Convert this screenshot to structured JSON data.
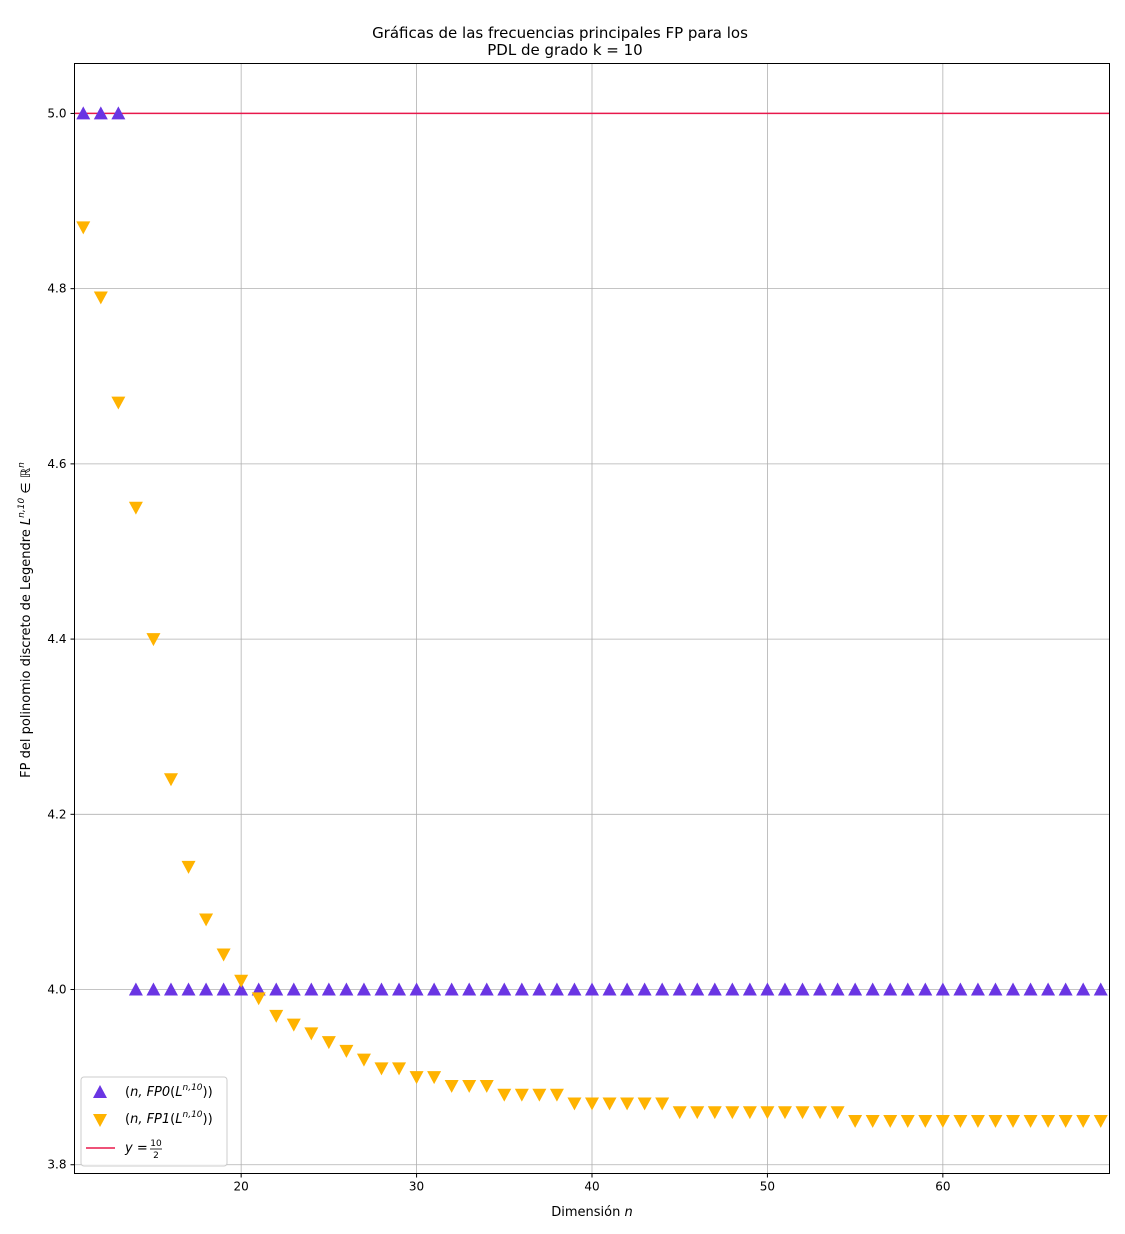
{
  "chart_data": {
    "type": "scatter",
    "title_line1": "Gráficas de las frecuencias principales FP para los",
    "title_line2": "PDL de grado k = 10",
    "xlabel": "Dimensión n",
    "ylabel": "FP del polinomio discreto de Legendre L^{n,10} ∈ ℝ^n",
    "xlim": [
      10.5,
      69.5
    ],
    "ylim": [
      3.79,
      5.057
    ],
    "xticks": [
      20,
      30,
      40,
      50,
      60
    ],
    "yticks": [
      3.8,
      4.0,
      4.2,
      4.4,
      4.6,
      4.8,
      5.0
    ],
    "grid": true,
    "legend_position": "lower-left",
    "series": [
      {
        "name": "(n, FP0(L^{n,10}))",
        "marker": "triangle-up",
        "color": "#6a35e3",
        "x": [
          11,
          12,
          13,
          14,
          15,
          16,
          17,
          18,
          19,
          20,
          21,
          22,
          23,
          24,
          25,
          26,
          27,
          28,
          29,
          30,
          31,
          32,
          33,
          34,
          35,
          36,
          37,
          38,
          39,
          40,
          41,
          42,
          43,
          44,
          45,
          46,
          47,
          48,
          49,
          50,
          51,
          52,
          53,
          54,
          55,
          56,
          57,
          58,
          59,
          60,
          61,
          62,
          63,
          64,
          65,
          66,
          67,
          68,
          69
        ],
        "y": [
          5.0,
          5.0,
          5.0,
          4.0,
          4.0,
          4.0,
          4.0,
          4.0,
          4.0,
          4.0,
          4.0,
          4.0,
          4.0,
          4.0,
          4.0,
          4.0,
          4.0,
          4.0,
          4.0,
          4.0,
          4.0,
          4.0,
          4.0,
          4.0,
          4.0,
          4.0,
          4.0,
          4.0,
          4.0,
          4.0,
          4.0,
          4.0,
          4.0,
          4.0,
          4.0,
          4.0,
          4.0,
          4.0,
          4.0,
          4.0,
          4.0,
          4.0,
          4.0,
          4.0,
          4.0,
          4.0,
          4.0,
          4.0,
          4.0,
          4.0,
          4.0,
          4.0,
          4.0,
          4.0,
          4.0,
          4.0,
          4.0,
          4.0,
          4.0
        ]
      },
      {
        "name": "(n, FP1(L^{n,10}))",
        "marker": "triangle-down",
        "color": "#ffb300",
        "x": [
          11,
          12,
          13,
          14,
          15,
          16,
          17,
          18,
          19,
          20,
          21,
          22,
          23,
          24,
          25,
          26,
          27,
          28,
          29,
          30,
          31,
          32,
          33,
          34,
          35,
          36,
          37,
          38,
          39,
          40,
          41,
          42,
          43,
          44,
          45,
          46,
          47,
          48,
          49,
          50,
          51,
          52,
          53,
          54,
          55,
          56,
          57,
          58,
          59,
          60,
          61,
          62,
          63,
          64,
          65,
          66,
          67,
          68,
          69
        ],
        "y": [
          4.87,
          4.79,
          4.67,
          4.55,
          4.4,
          4.24,
          4.14,
          4.08,
          4.04,
          4.01,
          3.99,
          3.97,
          3.96,
          3.95,
          3.94,
          3.93,
          3.92,
          3.91,
          3.91,
          3.9,
          3.9,
          3.89,
          3.89,
          3.89,
          3.88,
          3.88,
          3.88,
          3.88,
          3.87,
          3.87,
          3.87,
          3.87,
          3.87,
          3.87,
          3.86,
          3.86,
          3.86,
          3.86,
          3.86,
          3.86,
          3.86,
          3.86,
          3.86,
          3.86,
          3.85,
          3.85,
          3.85,
          3.85,
          3.85,
          3.85,
          3.85,
          3.85,
          3.85,
          3.85,
          3.85,
          3.85,
          3.85,
          3.85,
          3.85
        ]
      },
      {
        "name": "y = 10/2",
        "marker": "line",
        "color": "#e8194b",
        "y_constant": 5.0
      }
    ]
  }
}
